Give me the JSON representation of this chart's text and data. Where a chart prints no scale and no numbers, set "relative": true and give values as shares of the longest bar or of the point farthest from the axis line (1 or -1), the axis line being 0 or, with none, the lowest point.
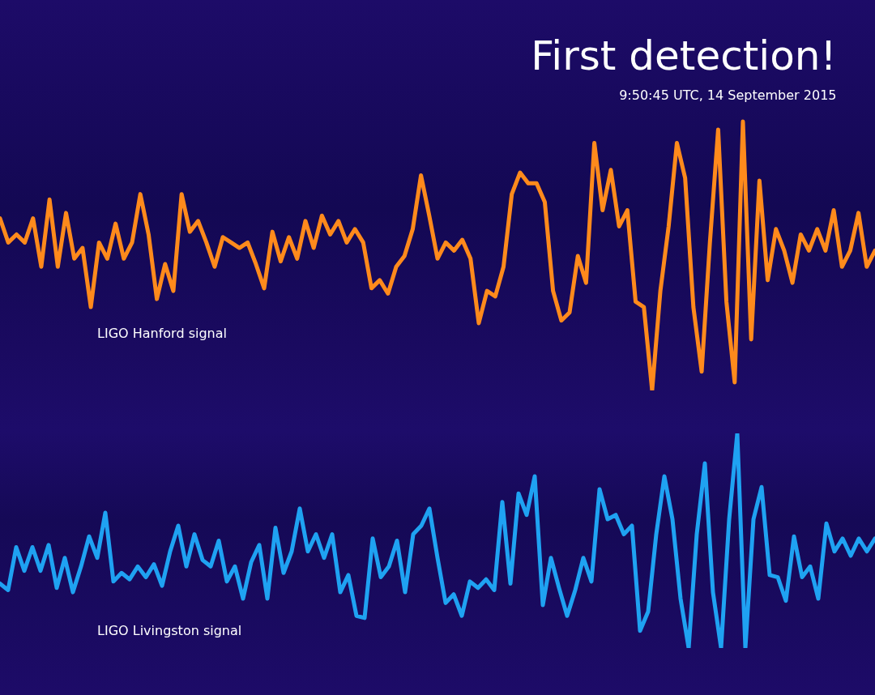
{
  "chart_data": [
    {
      "type": "line",
      "title": "First detection!",
      "subtitle": "9:50:45 UTC, 14 September 2015",
      "relative": true,
      "categories": [
        null,
        null,
        null,
        null,
        null,
        null,
        null,
        null,
        null,
        null,
        null,
        null,
        null,
        null,
        null,
        null,
        null,
        null,
        null,
        null,
        null,
        null,
        null,
        null,
        null,
        null,
        null,
        null,
        null,
        null,
        null,
        null,
        null,
        null,
        null,
        null,
        null,
        null,
        null,
        null,
        null,
        null,
        null,
        null,
        null,
        null,
        null,
        null,
        null,
        null,
        null,
        null,
        null,
        null,
        null,
        null,
        null,
        null,
        null,
        null,
        null,
        null,
        null,
        null,
        null,
        null,
        null,
        null,
        null,
        null,
        null,
        null,
        null,
        null,
        null,
        null,
        null,
        null,
        null,
        null,
        null,
        null,
        null,
        null,
        null,
        null,
        null,
        null,
        null,
        null,
        null,
        null,
        null,
        null,
        null,
        null,
        null,
        null,
        null,
        null,
        null,
        null,
        null,
        null,
        null,
        null,
        null
      ],
      "series": [
        {
          "name": "LIGO Hanford signal",
          "color": "#ff8a1c",
          "values": [
            0.64,
            0.55,
            0.58,
            0.55,
            0.64,
            0.46,
            0.71,
            0.46,
            0.66,
            0.49,
            0.53,
            0.31,
            0.55,
            0.49,
            0.62,
            0.49,
            0.55,
            0.73,
            0.58,
            0.34,
            0.47,
            0.37,
            0.73,
            0.59,
            0.63,
            0.55,
            0.46,
            0.57,
            0.55,
            0.53,
            0.55,
            0.47,
            0.38,
            0.59,
            0.48,
            0.57,
            0.49,
            0.63,
            0.53,
            0.65,
            0.58,
            0.63,
            0.55,
            0.6,
            0.55,
            0.38,
            0.41,
            0.36,
            0.46,
            0.5,
            0.6,
            0.8,
            0.65,
            0.49,
            0.55,
            0.52,
            0.56,
            0.49,
            0.25,
            0.37,
            0.35,
            0.46,
            0.73,
            0.81,
            0.77,
            0.77,
            0.7,
            0.37,
            0.26,
            0.29,
            0.5,
            0.4,
            0.92,
            0.67,
            0.82,
            0.61,
            0.67,
            0.33,
            0.31,
            0,
            0.37,
            0.61,
            0.92,
            0.79,
            0.31,
            0.07,
            0.55,
            0.97,
            0.33,
            0.03,
            1,
            0.19,
            0.78,
            0.41,
            0.6,
            0.52,
            0.4,
            0.58,
            0.52,
            0.6,
            0.52,
            0.67,
            0.46,
            0.52,
            0.66,
            0.46,
            0.52
          ]
        }
      ]
    },
    {
      "type": "line",
      "relative": true,
      "categories": [
        null,
        null,
        null,
        null,
        null,
        null,
        null,
        null,
        null,
        null,
        null,
        null,
        null,
        null,
        null,
        null,
        null,
        null,
        null,
        null,
        null,
        null,
        null,
        null,
        null,
        null,
        null,
        null,
        null,
        null,
        null,
        null,
        null,
        null,
        null,
        null,
        null,
        null,
        null,
        null,
        null,
        null,
        null,
        null,
        null,
        null,
        null,
        null,
        null,
        null,
        null,
        null,
        null,
        null,
        null,
        null,
        null,
        null,
        null,
        null,
        null,
        null,
        null,
        null,
        null,
        null,
        null,
        null,
        null,
        null,
        null,
        null,
        null,
        null,
        null,
        null,
        null,
        null,
        null,
        null,
        null,
        null,
        null,
        null,
        null,
        null,
        null,
        null,
        null,
        null,
        null,
        null,
        null,
        null,
        null,
        null,
        null,
        null,
        null,
        null,
        null,
        null,
        null,
        null,
        null,
        null,
        null,
        null,
        null
      ],
      "series": [
        {
          "name": "LIGO Livingston signal",
          "color": "#1fa2f2",
          "values": [
            0.3,
            0.27,
            0.47,
            0.36,
            0.47,
            0.36,
            0.48,
            0.28,
            0.42,
            0.26,
            0.38,
            0.52,
            0.42,
            0.63,
            0.31,
            0.35,
            0.32,
            0.38,
            0.33,
            0.39,
            0.29,
            0.45,
            0.57,
            0.38,
            0.53,
            0.41,
            0.38,
            0.5,
            0.31,
            0.38,
            0.23,
            0.4,
            0.48,
            0.23,
            0.56,
            0.35,
            0.45,
            0.65,
            0.45,
            0.53,
            0.42,
            0.53,
            0.26,
            0.34,
            0.15,
            0.14,
            0.51,
            0.33,
            0.38,
            0.5,
            0.26,
            0.53,
            0.57,
            0.65,
            0.42,
            0.21,
            0.25,
            0.15,
            0.31,
            0.28,
            0.32,
            0.27,
            0.68,
            0.3,
            0.72,
            0.62,
            0.8,
            0.2,
            0.42,
            0.28,
            0.15,
            0.27,
            0.42,
            0.31,
            0.74,
            0.6,
            0.62,
            0.53,
            0.57,
            0.08,
            0.17,
            0.53,
            0.8,
            0.6,
            0.23,
            0,
            0.53,
            0.86,
            0.26,
            0,
            0.6,
            1,
            0,
            0.6,
            0.75,
            0.34,
            0.33,
            0.22,
            0.52,
            0.33,
            0.38,
            0.23,
            0.58,
            0.45,
            0.51,
            0.43,
            0.51,
            0.45,
            0.51
          ]
        }
      ]
    }
  ]
}
